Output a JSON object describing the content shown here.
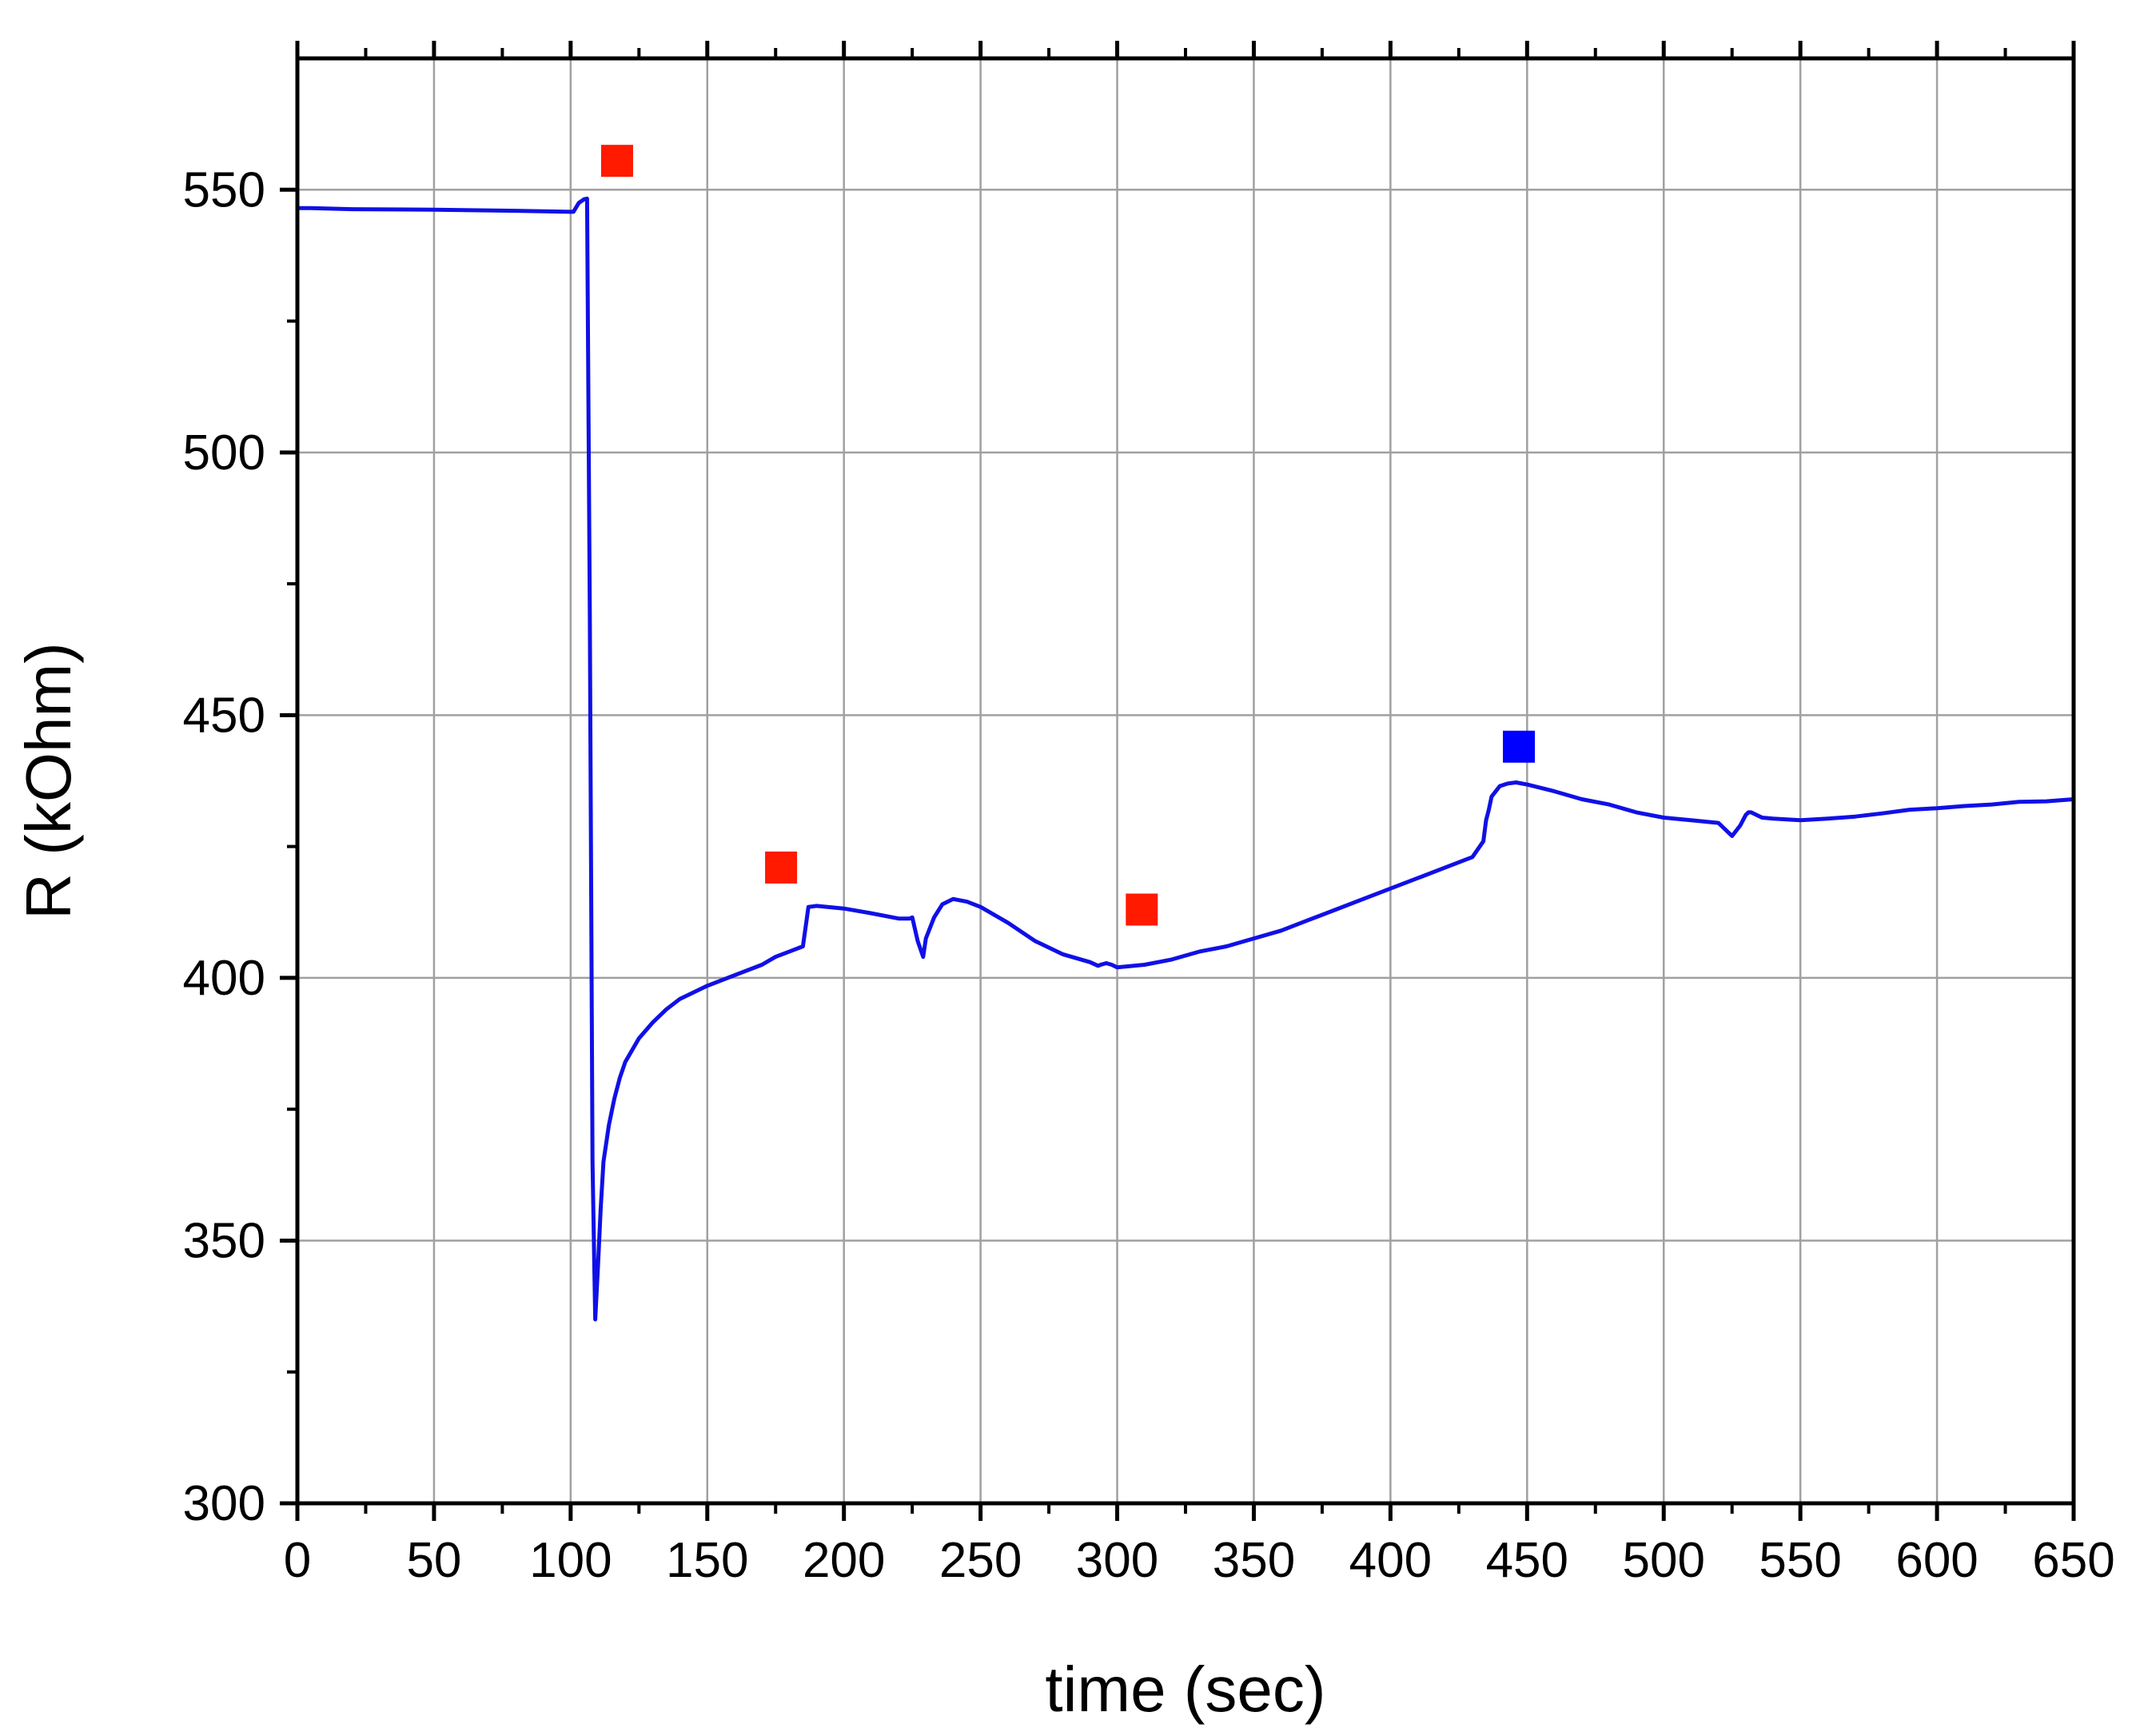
{
  "chart_data": {
    "type": "line",
    "xlabel": "time (sec)",
    "ylabel": "R (kOhm)",
    "xlim": [
      0,
      650
    ],
    "ylim": [
      300,
      575
    ],
    "xticks": [
      0,
      50,
      100,
      150,
      200,
      250,
      300,
      350,
      400,
      450,
      500,
      550,
      600,
      650
    ],
    "yticks": [
      300,
      350,
      400,
      450,
      500,
      550
    ],
    "grid": true,
    "line_color": "#1010e6",
    "series": [
      {
        "x": [
          0,
          5,
          20,
          50,
          80,
          100,
          101,
          103,
          105,
          106,
          107,
          108,
          109,
          110,
          111,
          112,
          114,
          116,
          118,
          120,
          125,
          130,
          135,
          140,
          150,
          160,
          170,
          175,
          180,
          185,
          187,
          190,
          200,
          210,
          220,
          224,
          225,
          227,
          229,
          230,
          233,
          236,
          240,
          245,
          250,
          260,
          270,
          280,
          290,
          293,
          294,
          296,
          298,
          300,
          310,
          320,
          330,
          340,
          350,
          360,
          370,
          380,
          390,
          400,
          410,
          420,
          430,
          434,
          435,
          436,
          437,
          440,
          443,
          446,
          450,
          460,
          470,
          480,
          490,
          500,
          510,
          520,
          525,
          528,
          530,
          531,
          532,
          534,
          536,
          540,
          550,
          560,
          570,
          580,
          590,
          600,
          610,
          620,
          630,
          640,
          650
        ],
        "y": [
          546.5,
          546.5,
          546.3,
          546.2,
          546.0,
          545.8,
          545.8,
          547.5,
          548.2,
          548.3,
          470.0,
          365.0,
          335.0,
          345.0,
          356.0,
          365.0,
          372.0,
          377.0,
          381.0,
          384.0,
          388.5,
          391.5,
          394.0,
          396.0,
          398.5,
          400.5,
          402.5,
          404.0,
          405.0,
          406.0,
          413.5,
          413.7,
          413.2,
          412.3,
          411.3,
          411.3,
          411.5,
          407.0,
          404.0,
          407.5,
          411.5,
          414.0,
          415.0,
          414.5,
          413.5,
          410.5,
          407.0,
          404.5,
          403.0,
          402.3,
          402.5,
          402.8,
          402.5,
          402.0,
          402.5,
          403.5,
          405.0,
          406.0,
          407.5,
          409.0,
          411.0,
          413.0,
          415.0,
          417.0,
          419.0,
          421.0,
          423.0,
          426.0,
          430.0,
          432.0,
          434.5,
          436.5,
          437.0,
          437.2,
          436.8,
          435.5,
          434.0,
          433.0,
          431.5,
          430.5,
          430.0,
          429.5,
          427.0,
          429.0,
          431.0,
          431.5,
          431.5,
          431.0,
          430.5,
          430.3,
          430.0,
          430.3,
          430.7,
          431.3,
          432.0,
          432.3,
          432.7,
          433.0,
          433.5,
          433.6,
          434.0
        ]
      }
    ],
    "markers": [
      {
        "x": 117,
        "y": 555.5,
        "color": "#ff1a00"
      },
      {
        "x": 177,
        "y": 421,
        "color": "#ff1a00"
      },
      {
        "x": 309,
        "y": 413,
        "color": "#ff1a00"
      },
      {
        "x": 447,
        "y": 444,
        "color": "#0000ff"
      }
    ]
  }
}
